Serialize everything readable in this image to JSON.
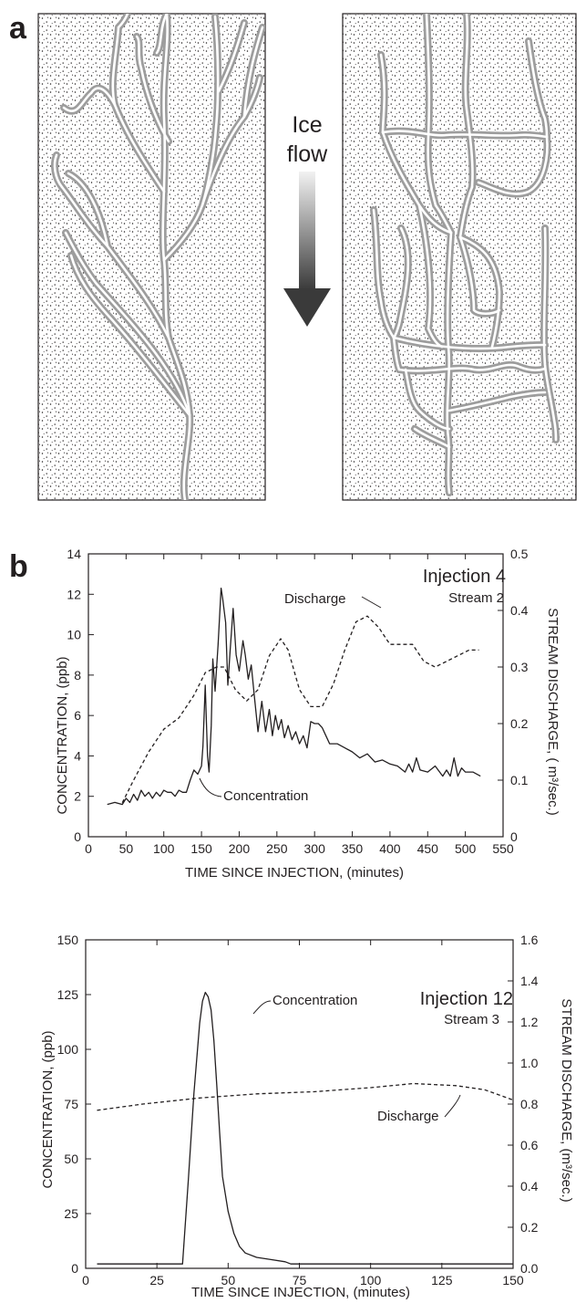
{
  "panel_a": {
    "label": "a",
    "arrow_label_line1": "Ice",
    "arrow_label_line2": "flow"
  },
  "panel_b": {
    "label": "b"
  },
  "colors": {
    "channel": "#9d9d9d",
    "ink": "#231f20",
    "arrow_dark": "#3a3a3a",
    "arrow_light": "#f2f2f2"
  },
  "chart_data": [
    {
      "type": "line",
      "title": "Injection 4",
      "subtitle": "Stream 2",
      "xlabel": "TIME SINCE INJECTION,  (minutes)",
      "ylabel": "CONCENTRATION,  (ppb)",
      "y2label": "STREAM DISCHARGE,  ( m³/sec.)",
      "xlim": [
        0,
        550
      ],
      "ylim": [
        0,
        14
      ],
      "y2lim": [
        0,
        0.5
      ],
      "xticks": [
        "0",
        "50",
        "100",
        "150",
        "200",
        "250",
        "300",
        "350",
        "400",
        "450",
        "500",
        "550"
      ],
      "yticks": [
        "0",
        "2",
        "4",
        "6",
        "8",
        "10",
        "12",
        "14"
      ],
      "y2ticks": [
        "0",
        "0.1",
        "0.2",
        "0.3",
        "0.4",
        "0.5"
      ],
      "grid": false,
      "series": [
        {
          "name": "Concentration",
          "axis": "left",
          "style": "solid",
          "x": [
            25,
            35,
            45,
            50,
            55,
            60,
            65,
            70,
            75,
            80,
            85,
            90,
            95,
            100,
            105,
            110,
            115,
            120,
            125,
            130,
            135,
            140,
            145,
            150,
            152,
            155,
            158,
            160,
            163,
            165,
            168,
            172,
            176,
            178,
            182,
            185,
            188,
            192,
            196,
            200,
            205,
            208,
            212,
            216,
            220,
            225,
            230,
            235,
            240,
            244,
            248,
            252,
            256,
            260,
            265,
            270,
            275,
            280,
            285,
            290,
            295,
            300,
            305,
            310,
            315,
            320,
            330,
            340,
            350,
            360,
            370,
            380,
            390,
            400,
            410,
            420,
            425,
            430,
            435,
            440,
            450,
            460,
            470,
            475,
            480,
            485,
            490,
            495,
            500,
            510,
            520
          ],
          "values": [
            1.6,
            1.7,
            1.6,
            1.9,
            1.7,
            2.1,
            1.8,
            2.3,
            2.0,
            2.2,
            1.9,
            2.2,
            2.0,
            2.3,
            2.2,
            2.2,
            2.0,
            2.3,
            2.2,
            2.2,
            2.8,
            3.3,
            3.1,
            3.5,
            4.5,
            7.5,
            4.0,
            3.2,
            5.5,
            8.8,
            7.2,
            9.5,
            12.3,
            11.8,
            10.6,
            7.5,
            9.2,
            11.3,
            9.0,
            8.2,
            9.7,
            9.0,
            7.8,
            8.5,
            7.0,
            5.2,
            6.7,
            5.2,
            6.3,
            5.0,
            6.0,
            5.3,
            5.8,
            4.9,
            5.5,
            4.8,
            5.2,
            4.6,
            5.0,
            4.4,
            5.7,
            5.6,
            5.6,
            5.4,
            5.0,
            4.6,
            4.6,
            4.4,
            4.2,
            3.9,
            4.1,
            3.7,
            3.8,
            3.6,
            3.5,
            3.2,
            3.6,
            3.2,
            3.9,
            3.3,
            3.2,
            3.5,
            3.0,
            3.3,
            3.0,
            3.9,
            3.0,
            3.4,
            3.2,
            3.2,
            3.0
          ]
        },
        {
          "name": "Discharge",
          "axis": "right",
          "style": "dashed",
          "x": [
            45,
            60,
            80,
            100,
            120,
            140,
            155,
            170,
            180,
            195,
            210,
            225,
            240,
            255,
            265,
            280,
            295,
            310,
            325,
            340,
            355,
            370,
            385,
            400,
            415,
            430,
            445,
            460,
            475,
            490,
            505,
            518
          ],
          "values": [
            0.06,
            0.1,
            0.15,
            0.19,
            0.21,
            0.25,
            0.29,
            0.3,
            0.3,
            0.26,
            0.24,
            0.26,
            0.32,
            0.35,
            0.33,
            0.26,
            0.23,
            0.23,
            0.27,
            0.33,
            0.38,
            0.39,
            0.37,
            0.34,
            0.34,
            0.34,
            0.31,
            0.3,
            0.31,
            0.32,
            0.33,
            0.33
          ]
        }
      ],
      "annotations": [
        "Discharge",
        "Concentration"
      ]
    },
    {
      "type": "line",
      "title": "Injection 12",
      "subtitle": "Stream 3",
      "xlabel": "TIME SINCE INJECTION, (minutes)",
      "ylabel": "CONCENTRATION,  (ppb)",
      "y2label": "STREAM DISCHARGE,  (m³/sec.)",
      "xlim": [
        0,
        150
      ],
      "ylim": [
        0,
        150
      ],
      "y2lim": [
        0,
        1.6
      ],
      "xticks": [
        "0",
        "25",
        "50",
        "75",
        "100",
        "125",
        "150"
      ],
      "yticks": [
        "0",
        "25",
        "50",
        "75",
        "100",
        "125",
        "150"
      ],
      "y2ticks": [
        "0.0",
        "0.2",
        "0.4",
        "0.6",
        "0.8",
        "1.0",
        "1.2",
        "1.4",
        "1.6"
      ],
      "grid": false,
      "series": [
        {
          "name": "Concentration",
          "axis": "left",
          "style": "solid",
          "x": [
            4,
            10,
            20,
            30,
            34,
            36,
            38,
            40,
            41,
            42,
            43,
            44,
            45,
            46,
            47,
            48,
            50,
            52,
            54,
            56,
            60,
            65,
            70,
            72,
            80,
            100,
            120,
            150
          ],
          "values": [
            2,
            2,
            2,
            2,
            2,
            40,
            80,
            112,
            122,
            126,
            124,
            118,
            104,
            84,
            62,
            42,
            26,
            16,
            10,
            7,
            5,
            4,
            3,
            2,
            2,
            2,
            2,
            2
          ]
        },
        {
          "name": "Discharge",
          "axis": "right",
          "style": "dashed",
          "x": [
            4,
            20,
            40,
            60,
            80,
            100,
            115,
            130,
            140,
            150
          ],
          "values": [
            0.77,
            0.8,
            0.83,
            0.85,
            0.86,
            0.88,
            0.9,
            0.89,
            0.87,
            0.82
          ]
        }
      ],
      "annotations": [
        "Concentration",
        "Discharge"
      ]
    }
  ]
}
